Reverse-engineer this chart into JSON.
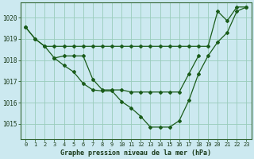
{
  "title": "Graphe pression niveau de la mer (hPa)",
  "bg_color": "#cce9f0",
  "grid_color": "#99ccbb",
  "line_color": "#1a5c1a",
  "x_ticks": [
    0,
    1,
    2,
    3,
    4,
    5,
    6,
    7,
    8,
    9,
    10,
    11,
    12,
    13,
    14,
    15,
    16,
    17,
    18,
    19,
    20,
    21,
    22,
    23
  ],
  "ylim": [
    1014.3,
    1020.7
  ],
  "y_ticks": [
    1015,
    1016,
    1017,
    1018,
    1019,
    1020
  ],
  "line1_x": [
    0,
    1,
    2,
    3,
    4,
    5,
    6,
    7,
    8,
    9,
    10,
    11,
    12,
    13,
    14,
    15,
    16,
    17,
    18,
    19,
    20,
    21,
    22,
    23
  ],
  "line1_y": [
    1019.55,
    1019.0,
    1018.65,
    1018.65,
    1018.65,
    1018.65,
    1018.65,
    1018.65,
    1018.65,
    1018.65,
    1018.65,
    1018.65,
    1018.65,
    1018.65,
    1018.65,
    1018.65,
    1018.65,
    1018.65,
    1018.65,
    1018.65,
    1020.3,
    1019.85,
    1020.5,
    1020.5
  ],
  "line2_x": [
    0,
    1,
    2,
    3,
    4,
    5,
    6,
    7,
    8,
    9,
    10,
    11,
    12,
    13,
    14,
    15,
    16,
    17,
    18,
    19,
    20,
    21,
    22,
    23
  ],
  "line2_y": [
    1019.55,
    1019.0,
    1018.65,
    1018.1,
    1017.75,
    1017.45,
    1016.9,
    1016.6,
    1016.55,
    1016.55,
    1016.05,
    1015.75,
    1015.35,
    1014.85,
    1014.85,
    1014.85,
    1015.15,
    1016.1,
    1017.35,
    1018.2,
    1018.85,
    1019.3,
    1020.3,
    1020.5
  ],
  "line3_x": [
    3,
    4,
    5,
    6,
    7,
    8,
    9,
    10,
    11,
    12,
    13,
    14,
    15,
    16,
    17,
    18,
    19
  ],
  "line3_y": [
    1018.1,
    1018.2,
    1018.2,
    1018.2,
    1017.1,
    1016.6,
    1016.6,
    1016.6,
    1016.5,
    1016.5,
    1016.5,
    1016.5,
    1016.5,
    1016.5,
    1017.35,
    1018.2,
    null
  ]
}
